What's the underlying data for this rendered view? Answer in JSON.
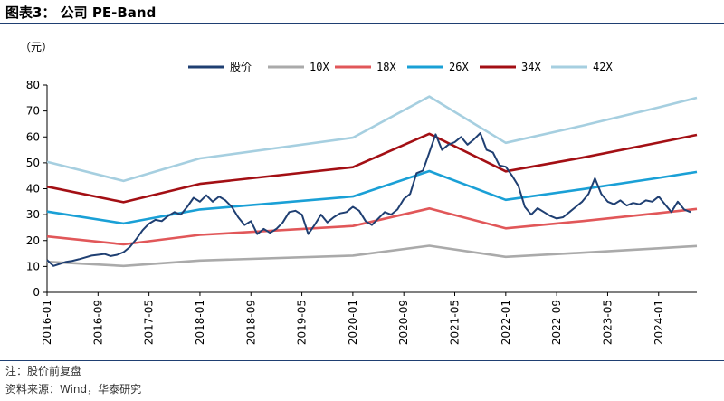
{
  "header": {
    "title": "图表3：  公司 PE-Band"
  },
  "footer": {
    "note": "注：股价前复盘",
    "source": "资料来源：Wind，华泰研究"
  },
  "chart_data": {
    "type": "line",
    "unit_label": "（元）",
    "ylim": [
      0,
      80
    ],
    "yticks": [
      "0",
      "10",
      "20",
      "30",
      "40",
      "50",
      "60",
      "70",
      "80"
    ],
    "xlim": [
      "2016-01",
      "2024-07"
    ],
    "xticks": [
      "2016-01",
      "2016-09",
      "2017-05",
      "2018-01",
      "2018-09",
      "2019-05",
      "2020-01",
      "2020-09",
      "2021-05",
      "2022-01",
      "2022-09",
      "2023-05",
      "2024-01"
    ],
    "legend_position": "top",
    "grid": false,
    "series": [
      {
        "name": "股价",
        "color": "#1f3f72",
        "points": [
          [
            "2016-01",
            12.5
          ],
          [
            "2016-02",
            10.2
          ],
          [
            "2016-03",
            11.0
          ],
          [
            "2016-04",
            11.8
          ],
          [
            "2016-05",
            12.2
          ],
          [
            "2016-06",
            12.8
          ],
          [
            "2016-07",
            13.5
          ],
          [
            "2016-08",
            14.2
          ],
          [
            "2016-09",
            14.5
          ],
          [
            "2016-10",
            14.8
          ],
          [
            "2016-11",
            14.0
          ],
          [
            "2016-12",
            14.5
          ],
          [
            "2017-01",
            15.5
          ],
          [
            "2017-02",
            17.5
          ],
          [
            "2017-03",
            20.5
          ],
          [
            "2017-04",
            24.0
          ],
          [
            "2017-05",
            26.5
          ],
          [
            "2017-06",
            28.0
          ],
          [
            "2017-07",
            27.5
          ],
          [
            "2017-08",
            29.5
          ],
          [
            "2017-09",
            31.0
          ],
          [
            "2017-10",
            30.0
          ],
          [
            "2017-11",
            33.0
          ],
          [
            "2017-12",
            36.5
          ],
          [
            "2018-01",
            35.0
          ],
          [
            "2018-02",
            37.5
          ],
          [
            "2018-03",
            35.0
          ],
          [
            "2018-04",
            37.0
          ],
          [
            "2018-05",
            35.5
          ],
          [
            "2018-06",
            33.0
          ],
          [
            "2018-07",
            29.0
          ],
          [
            "2018-08",
            26.0
          ],
          [
            "2018-09",
            27.5
          ],
          [
            "2018-10",
            22.5
          ],
          [
            "2018-11",
            24.5
          ],
          [
            "2018-12",
            23.0
          ],
          [
            "2019-01",
            24.5
          ],
          [
            "2019-02",
            27.0
          ],
          [
            "2019-03",
            31.0
          ],
          [
            "2019-04",
            31.5
          ],
          [
            "2019-05",
            30.0
          ],
          [
            "2019-06",
            22.5
          ],
          [
            "2019-07",
            26.0
          ],
          [
            "2019-08",
            30.0
          ],
          [
            "2019-09",
            27.0
          ],
          [
            "2019-10",
            29.0
          ],
          [
            "2019-11",
            30.5
          ],
          [
            "2019-12",
            31.0
          ],
          [
            "2020-01",
            33.0
          ],
          [
            "2020-02",
            31.5
          ],
          [
            "2020-03",
            27.5
          ],
          [
            "2020-04",
            26.0
          ],
          [
            "2020-05",
            28.5
          ],
          [
            "2020-06",
            31.0
          ],
          [
            "2020-07",
            30.0
          ],
          [
            "2020-08",
            32.0
          ],
          [
            "2020-09",
            36.0
          ],
          [
            "2020-10",
            38.0
          ],
          [
            "2020-11",
            46.0
          ],
          [
            "2020-12",
            47.0
          ],
          [
            "2021-01",
            54.0
          ],
          [
            "2021-02",
            61.0
          ],
          [
            "2021-03",
            55.0
          ],
          [
            "2021-04",
            57.0
          ],
          [
            "2021-05",
            58.0
          ],
          [
            "2021-06",
            60.0
          ],
          [
            "2021-07",
            57.0
          ],
          [
            "2021-08",
            59.0
          ],
          [
            "2021-09",
            61.5
          ],
          [
            "2021-10",
            55.0
          ],
          [
            "2021-11",
            54.0
          ],
          [
            "2021-12",
            49.0
          ],
          [
            "2022-01",
            48.5
          ],
          [
            "2022-02",
            45.0
          ],
          [
            "2022-03",
            41.0
          ],
          [
            "2022-04",
            33.0
          ],
          [
            "2022-05",
            30.0
          ],
          [
            "2022-06",
            32.5
          ],
          [
            "2022-07",
            31.0
          ],
          [
            "2022-08",
            29.5
          ],
          [
            "2022-09",
            28.5
          ],
          [
            "2022-10",
            29.0
          ],
          [
            "2022-11",
            31.0
          ],
          [
            "2022-12",
            33.0
          ],
          [
            "2023-01",
            35.0
          ],
          [
            "2023-02",
            38.0
          ],
          [
            "2023-03",
            44.0
          ],
          [
            "2023-04",
            38.0
          ],
          [
            "2023-05",
            35.0
          ],
          [
            "2023-06",
            34.0
          ],
          [
            "2023-07",
            35.5
          ],
          [
            "2023-08",
            33.5
          ],
          [
            "2023-09",
            34.5
          ],
          [
            "2023-10",
            34.0
          ],
          [
            "2023-11",
            35.5
          ],
          [
            "2023-12",
            35.0
          ],
          [
            "2024-01",
            37.0
          ],
          [
            "2024-02",
            34.0
          ],
          [
            "2024-03",
            31.0
          ],
          [
            "2024-04",
            35.0
          ],
          [
            "2024-05",
            32.0
          ],
          [
            "2024-06",
            31.0
          ]
        ]
      },
      {
        "name": "10X",
        "color": "#aaaaaa",
        "points": [
          [
            "2016-01",
            11.8
          ],
          [
            "2017-01",
            10.2
          ],
          [
            "2018-01",
            12.3
          ],
          [
            "2020-01",
            14.2
          ],
          [
            "2021-01",
            18.0
          ],
          [
            "2022-01",
            13.7
          ],
          [
            "2023-01",
            15.3
          ],
          [
            "2024-01",
            17.0
          ],
          [
            "2024-07",
            17.9
          ]
        ]
      },
      {
        "name": "18X",
        "color": "#e15759",
        "points": [
          [
            "2016-01",
            21.6
          ],
          [
            "2017-01",
            18.5
          ],
          [
            "2018-01",
            22.2
          ],
          [
            "2020-01",
            25.6
          ],
          [
            "2021-01",
            32.4
          ],
          [
            "2022-01",
            24.7
          ],
          [
            "2023-01",
            27.5
          ],
          [
            "2024-01",
            30.6
          ],
          [
            "2024-07",
            32.2
          ]
        ]
      },
      {
        "name": "26X",
        "color": "#1aa0d6",
        "points": [
          [
            "2016-01",
            31.2
          ],
          [
            "2017-01",
            26.6
          ],
          [
            "2018-01",
            32.0
          ],
          [
            "2020-01",
            37.0
          ],
          [
            "2021-01",
            46.8
          ],
          [
            "2022-01",
            35.7
          ],
          [
            "2023-01",
            39.8
          ],
          [
            "2024-01",
            44.2
          ],
          [
            "2024-07",
            46.5
          ]
        ]
      },
      {
        "name": "34X",
        "color": "#a30f14",
        "points": [
          [
            "2016-01",
            40.8
          ],
          [
            "2017-01",
            34.8
          ],
          [
            "2018-01",
            41.9
          ],
          [
            "2020-01",
            48.3
          ],
          [
            "2021-01",
            61.2
          ],
          [
            "2022-01",
            46.7
          ],
          [
            "2023-01",
            52.0
          ],
          [
            "2024-01",
            57.8
          ],
          [
            "2024-07",
            60.8
          ]
        ]
      },
      {
        "name": "42X",
        "color": "#a6cfe0",
        "points": [
          [
            "2016-01",
            50.4
          ],
          [
            "2017-01",
            43.0
          ],
          [
            "2018-01",
            51.7
          ],
          [
            "2020-01",
            59.7
          ],
          [
            "2021-01",
            75.6
          ],
          [
            "2022-01",
            57.7
          ],
          [
            "2023-01",
            64.3
          ],
          [
            "2024-01",
            71.4
          ],
          [
            "2024-07",
            75.1
          ]
        ]
      }
    ]
  }
}
